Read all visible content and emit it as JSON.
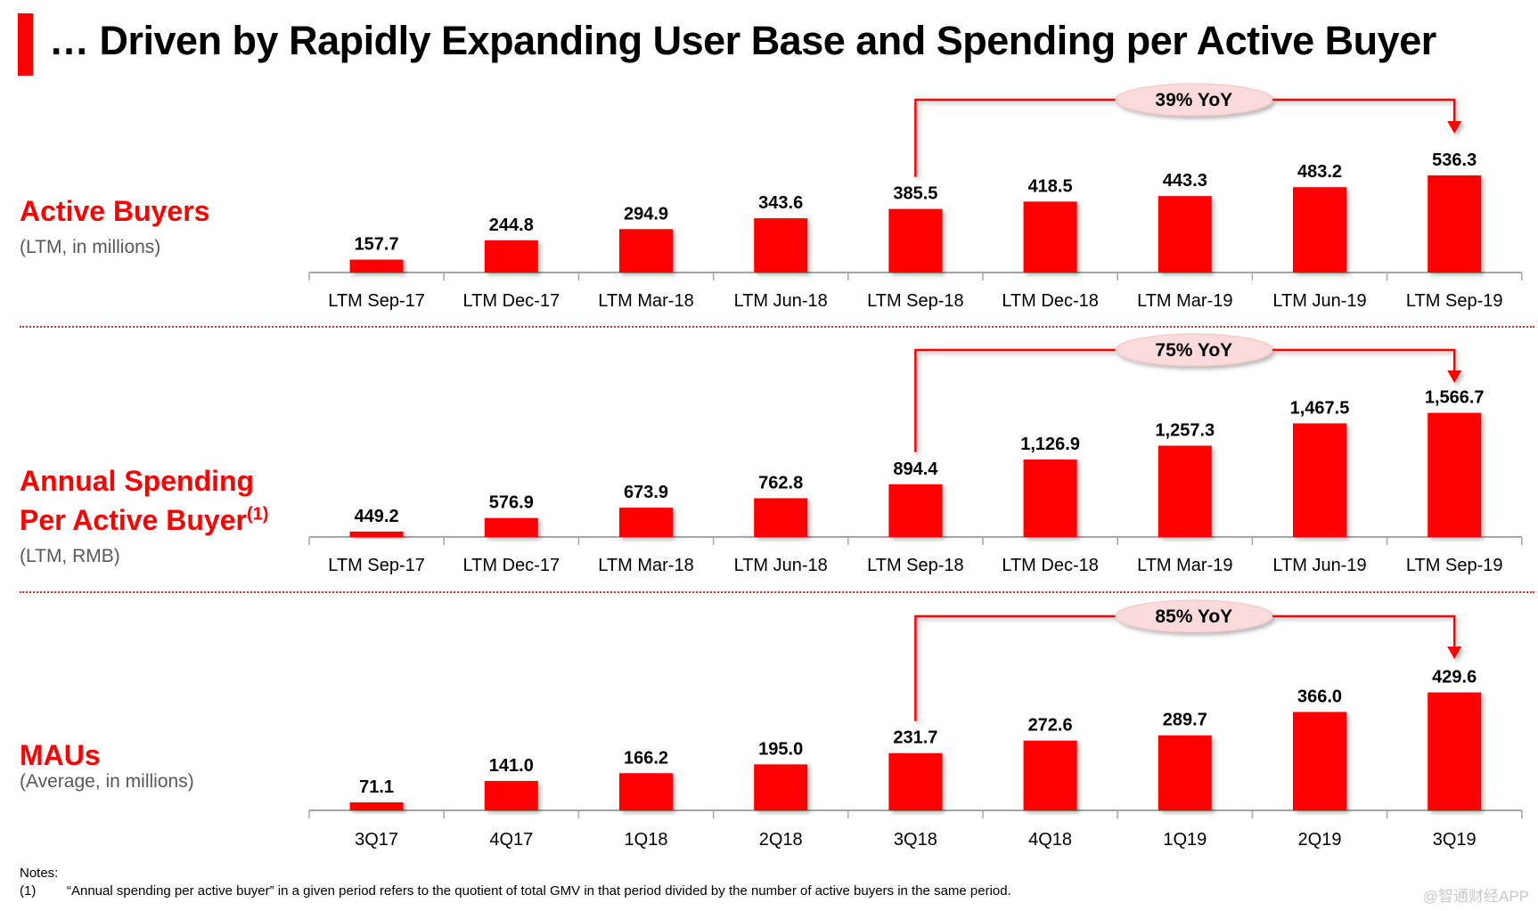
{
  "page": {
    "title": "… Driven by Rapidly Expanding User Base and Spending per Active Buyer",
    "accent_color": "#ff0000",
    "bar_color": "#ff0000",
    "pill_color": "#fadada"
  },
  "sections": [
    {
      "title_line1": "Active Buyers",
      "title_line2": "",
      "superscript": "",
      "subtitle": "(LTM, in millions)"
    },
    {
      "title_line1": "Annual Spending",
      "title_line2": "Per Active Buyer",
      "superscript": "(1)",
      "subtitle": "(LTM, RMB)"
    },
    {
      "title_line1": "MAUs",
      "title_line2": "",
      "superscript": "",
      "subtitle": "(Average, in millions)"
    }
  ],
  "chart_data": [
    {
      "type": "bar",
      "title": "Active Buyers",
      "ylabel": "(LTM, in millions)",
      "categories": [
        "LTM Sep-17",
        "LTM Dec-17",
        "LTM Mar-18",
        "LTM Jun-18",
        "LTM Sep-18",
        "LTM Dec-18",
        "LTM Mar-19",
        "LTM Jun-19",
        "LTM Sep-19"
      ],
      "values": [
        157.7,
        244.8,
        294.9,
        343.6,
        385.5,
        418.5,
        443.3,
        483.2,
        536.3
      ],
      "value_labels": [
        "157.7",
        "244.8",
        "294.9",
        "343.6",
        "385.5",
        "418.5",
        "443.3",
        "483.2",
        "536.3"
      ],
      "ylim": [
        100,
        540
      ],
      "grid": false,
      "annotation": {
        "label": "39% YoY",
        "from_category": "LTM Sep-18",
        "to_category": "LTM Sep-19"
      }
    },
    {
      "type": "bar",
      "title": "Annual Spending Per Active Buyer(1)",
      "ylabel": "(LTM, RMB)",
      "categories": [
        "LTM Sep-17",
        "LTM Dec-17",
        "LTM Mar-18",
        "LTM Jun-18",
        "LTM Sep-18",
        "LTM Dec-18",
        "LTM Mar-19",
        "LTM Jun-19",
        "LTM Sep-19"
      ],
      "values": [
        449.2,
        576.9,
        673.9,
        762.8,
        894.4,
        1126.9,
        1257.3,
        1467.5,
        1566.7
      ],
      "value_labels": [
        "449.2",
        "576.9",
        "673.9",
        "762.8",
        "894.4",
        "1,126.9",
        "1,257.3",
        "1,467.5",
        "1,566.7"
      ],
      "ylim": [
        398,
        1580
      ],
      "grid": false,
      "annotation": {
        "label": "75% YoY",
        "from_category": "LTM Sep-18",
        "to_category": "LTM Sep-19"
      }
    },
    {
      "type": "bar",
      "title": "MAUs",
      "ylabel": "(Average, in millions)",
      "categories": [
        "3Q17",
        "4Q17",
        "1Q18",
        "2Q18",
        "3Q18",
        "4Q18",
        "1Q19",
        "2Q19",
        "3Q19"
      ],
      "values": [
        71.1,
        141.0,
        166.2,
        195.0,
        231.7,
        272.6,
        289.7,
        366.0,
        429.6
      ],
      "value_labels": [
        "71.1",
        "141.0",
        "166.2",
        "195.0",
        "231.7",
        "272.6",
        "289.7",
        "366.0",
        "429.6"
      ],
      "ylim": [
        45,
        440
      ],
      "grid": false,
      "annotation": {
        "label": "85% YoY",
        "from_category": "3Q18",
        "to_category": "3Q19"
      }
    }
  ],
  "notes": {
    "heading": "Notes:",
    "items": [
      {
        "marker": "(1)",
        "text": "“Annual spending per active buyer” in a given period refers to the quotient of total GMV in that period divided by the number of active buyers in the same period."
      }
    ]
  },
  "watermark": "@智通财经APP"
}
